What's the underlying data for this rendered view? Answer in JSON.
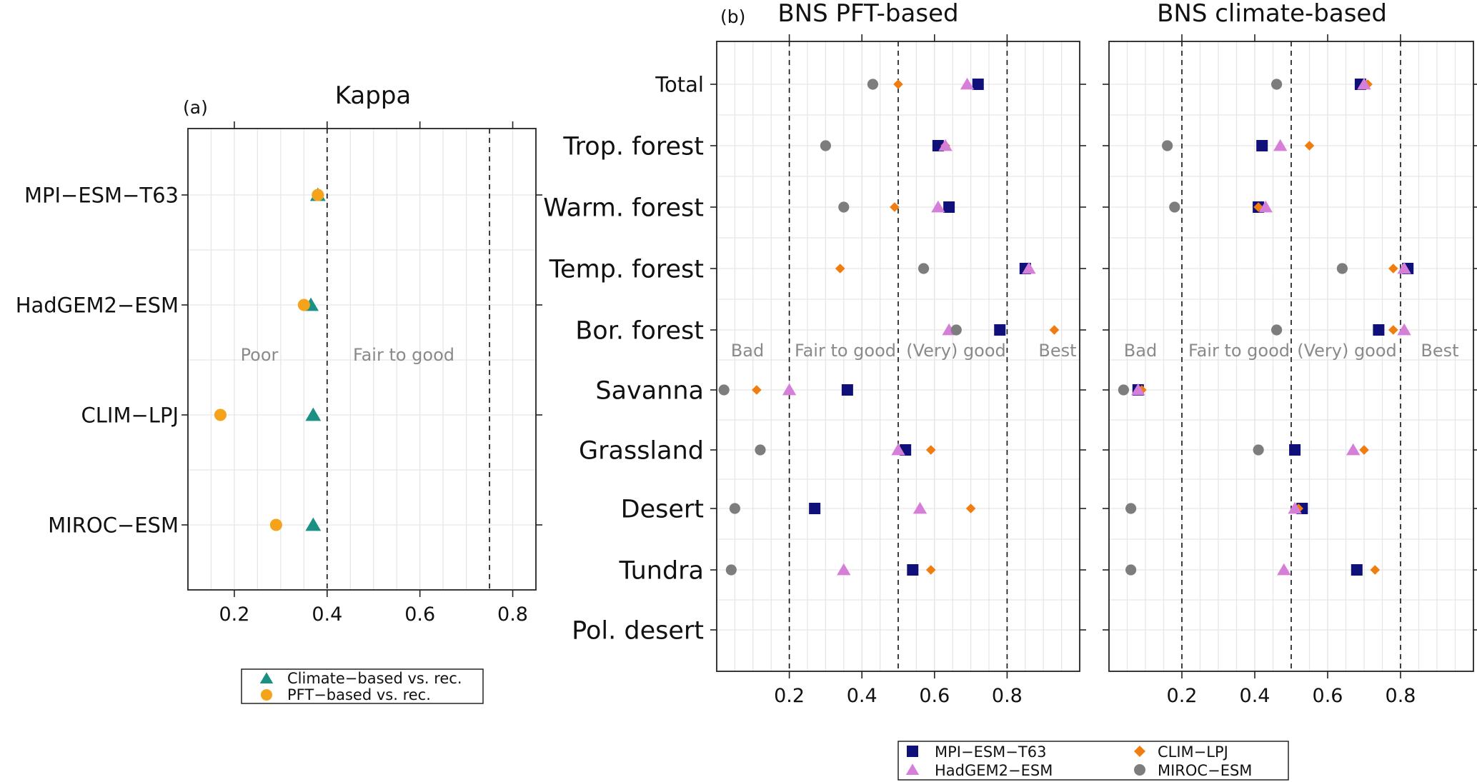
{
  "colors": {
    "MPI-ESM-T63": "#10107a",
    "CLIM-LPJ": "#ef7d10",
    "HadGEM2-ESM": "#d67fd8",
    "MIROC-ESM": "#7d7d7d",
    "climate": "#1a9085",
    "pft": "#f4a31a"
  },
  "chart_data": [
    {
      "id": "a",
      "type": "scatter",
      "panel_label": "(a)",
      "title": "Kappa",
      "xlim": [
        0.1,
        0.85
      ],
      "xticks": [
        0.2,
        0.4,
        0.6,
        0.8
      ],
      "xtick_labels": [
        "0.2",
        "0.4",
        "0.6",
        "0.8"
      ],
      "thresholds": [
        0.4,
        0.75
      ],
      "regions": [
        "Poor",
        "Fair  to  good"
      ],
      "categories": [
        "MPI−ESM−T63",
        "HadGEM2−ESM",
        "CLIM−LPJ",
        "MIROC−ESM"
      ],
      "series": [
        {
          "name": "Climate−based vs. rec.",
          "marker": "triangle",
          "values": [
            0.38,
            0.365,
            0.37,
            0.37
          ]
        },
        {
          "name": "PFT−based vs. rec.",
          "marker": "circle",
          "values": [
            0.38,
            0.35,
            0.17,
            0.29
          ]
        }
      ]
    },
    {
      "id": "b",
      "type": "scatter",
      "panel_label": "(b)",
      "title": "BNS  PFT-based",
      "xlim": [
        0,
        1
      ],
      "xticks": [
        0.2,
        0.4,
        0.6,
        0.8
      ],
      "xtick_labels": [
        "0.2",
        "0.4",
        "0.6",
        "0.8"
      ],
      "thresholds": [
        0.2,
        0.5,
        0.8
      ],
      "regions": [
        "Bad",
        "Fair to good",
        "(Very) good",
        "Best"
      ],
      "categories": [
        "Total",
        "Trop. forest",
        "Warm. forest",
        "Temp. forest",
        "Bor. forest",
        "Savanna",
        "Grassland",
        "Desert",
        "Tundra",
        "Pol. desert"
      ],
      "series": [
        {
          "name": "MPI−ESM−T63",
          "marker": "square",
          "values": [
            0.72,
            0.61,
            0.64,
            0.85,
            0.78,
            0.36,
            0.52,
            0.27,
            0.54,
            null
          ]
        },
        {
          "name": "CLIM−LPJ",
          "marker": "diamond",
          "values": [
            0.5,
            0.63,
            0.49,
            0.34,
            0.93,
            0.11,
            0.59,
            0.7,
            0.59,
            null
          ]
        },
        {
          "name": "HadGEM2−ESM",
          "marker": "triangle",
          "values": [
            0.69,
            0.63,
            0.61,
            0.86,
            0.64,
            0.2,
            0.5,
            0.56,
            0.35,
            null
          ]
        },
        {
          "name": "MIROC−ESM",
          "marker": "circle",
          "values": [
            0.43,
            0.3,
            0.35,
            0.57,
            0.66,
            0.02,
            0.12,
            0.05,
            0.04,
            null
          ]
        }
      ]
    },
    {
      "id": "b2",
      "type": "scatter",
      "title": "BNS  climate-based",
      "xlim": [
        0,
        1
      ],
      "xticks": [
        0.2,
        0.4,
        0.6,
        0.8
      ],
      "xtick_labels": [
        "0.2",
        "0.4",
        "0.6",
        "0.8"
      ],
      "thresholds": [
        0.2,
        0.5,
        0.8
      ],
      "regions": [
        "Bad",
        "Fair to good",
        "(Very) good",
        "Best"
      ],
      "categories": [
        "Total",
        "Trop. forest",
        "Warm. forest",
        "Temp. forest",
        "Bor. forest",
        "Savanna",
        "Grassland",
        "Desert",
        "Tundra",
        "Pol. desert"
      ],
      "series": [
        {
          "name": "MPI−ESM−T63",
          "marker": "square",
          "values": [
            0.69,
            0.42,
            0.41,
            0.82,
            0.74,
            0.08,
            0.51,
            0.53,
            0.68,
            null
          ]
        },
        {
          "name": "CLIM−LPJ",
          "marker": "diamond",
          "values": [
            0.71,
            0.55,
            0.41,
            0.78,
            0.78,
            0.09,
            0.7,
            0.52,
            0.73,
            null
          ]
        },
        {
          "name": "HadGEM2−ESM",
          "marker": "triangle",
          "values": [
            0.7,
            0.47,
            0.43,
            0.81,
            0.81,
            0.08,
            0.67,
            0.51,
            0.48,
            null
          ]
        },
        {
          "name": "MIROC−ESM",
          "marker": "circle",
          "values": [
            0.46,
            0.16,
            0.18,
            0.64,
            0.46,
            0.04,
            0.41,
            0.06,
            0.06,
            null
          ]
        }
      ]
    }
  ],
  "legend_a": [
    "Climate−based vs. rec.",
    "PFT−based vs. rec."
  ],
  "legend_b": [
    "MPI−ESM−T63",
    "CLIM−LPJ",
    "HadGEM2−ESM",
    "MIROC−ESM"
  ]
}
